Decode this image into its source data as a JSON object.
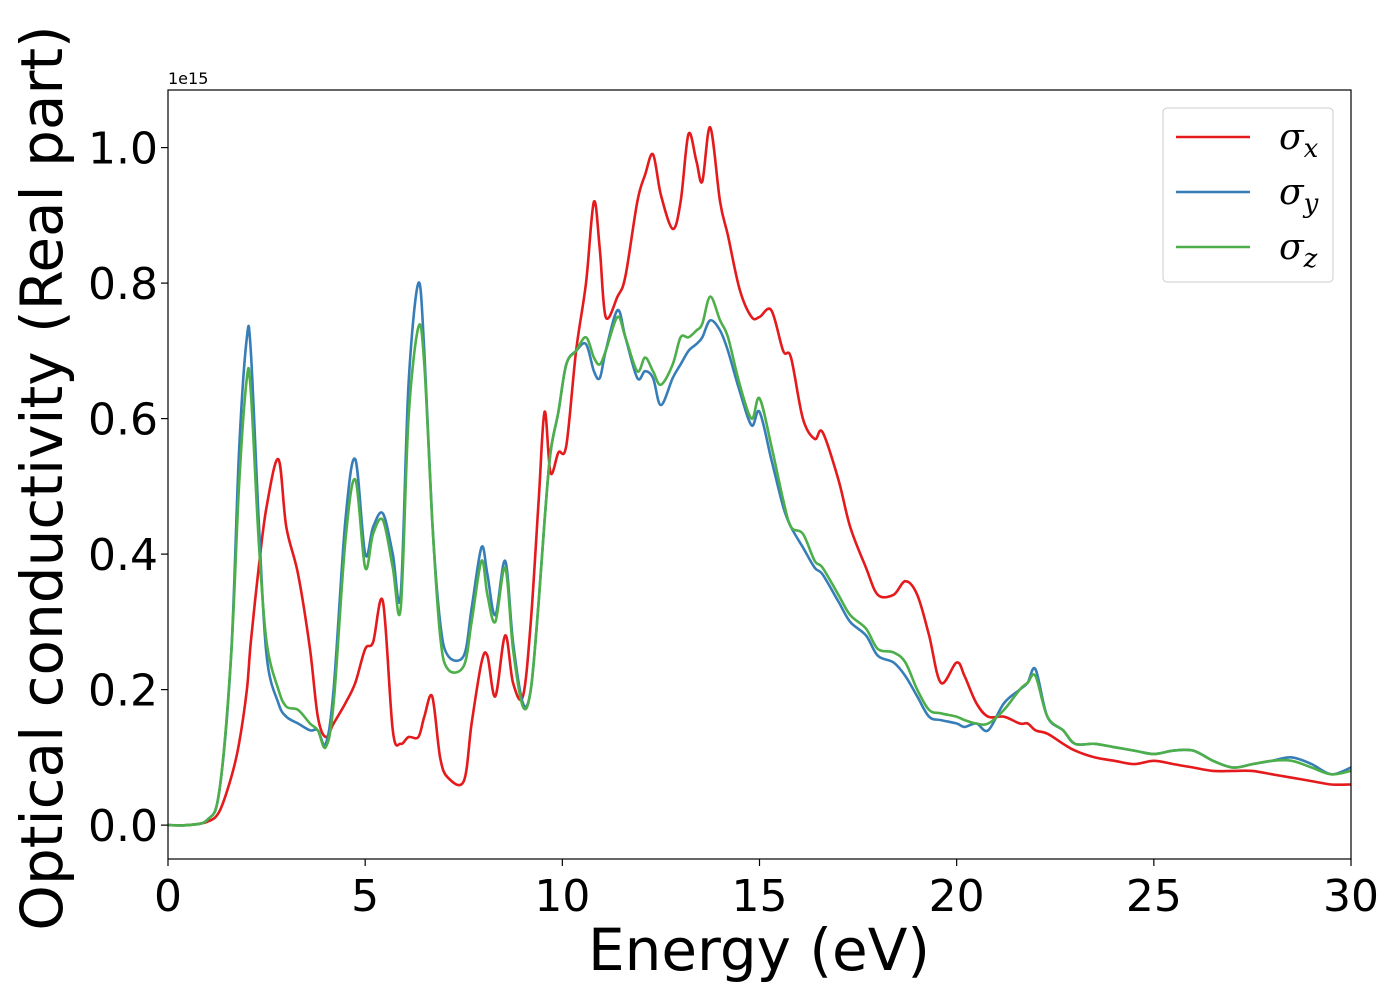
{
  "chart_data": {
    "type": "line",
    "xlabel": "Energy (eV)",
    "ylabel": "Optical conductivity (Real part)",
    "y_offset_text": "1e15",
    "xlim": [
      0,
      30
    ],
    "ylim": [
      -0.05,
      1.085
    ],
    "xticks": [
      0,
      5,
      10,
      15,
      20,
      25,
      30
    ],
    "xtick_labels": [
      "0",
      "5",
      "10",
      "15",
      "20",
      "25",
      "30"
    ],
    "yticks": [
      0.0,
      0.2,
      0.4,
      0.6,
      0.8,
      1.0
    ],
    "ytick_labels": [
      "0.0",
      "0.2",
      "0.4",
      "0.6",
      "0.8",
      "1.0"
    ],
    "grid": false,
    "legend": {
      "position": "top-right"
    },
    "x": [
      0,
      0.5,
      1.0,
      1.3,
      1.6,
      1.8,
      2.0,
      2.1,
      2.3,
      2.5,
      2.8,
      3.0,
      3.3,
      3.6,
      3.8,
      4.0,
      4.2,
      4.5,
      4.75,
      5.0,
      5.2,
      5.45,
      5.7,
      5.9,
      6.1,
      6.35,
      6.5,
      6.7,
      6.9,
      7.1,
      7.5,
      7.7,
      7.95,
      8.1,
      8.3,
      8.55,
      8.75,
      9.0,
      9.2,
      9.4,
      9.55,
      9.7,
      9.9,
      10.1,
      10.35,
      10.6,
      10.8,
      10.95,
      11.1,
      11.4,
      11.6,
      11.9,
      12.1,
      12.3,
      12.5,
      12.8,
      13.0,
      13.2,
      13.4,
      13.55,
      13.75,
      14.0,
      14.2,
      14.5,
      14.8,
      15.0,
      15.3,
      15.6,
      15.8,
      16.1,
      16.4,
      16.6,
      17.0,
      17.3,
      17.7,
      18.0,
      18.4,
      18.7,
      19.0,
      19.3,
      19.6,
      20.0,
      20.2,
      20.5,
      20.8,
      21.2,
      21.6,
      21.8,
      22.0,
      22.3,
      22.7,
      23.0,
      23.5,
      24.0,
      24.5,
      25.0,
      25.5,
      26.0,
      26.5,
      27.0,
      27.5,
      28.0,
      28.5,
      29.0,
      29.5,
      30.0
    ],
    "series": [
      {
        "name": "σ",
        "name_sub": "x",
        "color": "#e41a1c",
        "values": [
          0.0,
          0.0,
          0.005,
          0.02,
          0.07,
          0.12,
          0.2,
          0.27,
          0.38,
          0.47,
          0.54,
          0.44,
          0.37,
          0.26,
          0.16,
          0.13,
          0.15,
          0.18,
          0.21,
          0.26,
          0.27,
          0.33,
          0.14,
          0.12,
          0.13,
          0.13,
          0.16,
          0.19,
          0.1,
          0.07,
          0.065,
          0.15,
          0.24,
          0.25,
          0.19,
          0.28,
          0.21,
          0.19,
          0.3,
          0.48,
          0.61,
          0.52,
          0.55,
          0.56,
          0.7,
          0.8,
          0.92,
          0.85,
          0.75,
          0.78,
          0.81,
          0.92,
          0.96,
          0.99,
          0.93,
          0.88,
          0.92,
          1.02,
          0.98,
          0.95,
          1.03,
          0.92,
          0.87,
          0.79,
          0.75,
          0.75,
          0.76,
          0.7,
          0.69,
          0.6,
          0.57,
          0.58,
          0.51,
          0.44,
          0.38,
          0.34,
          0.34,
          0.36,
          0.34,
          0.28,
          0.21,
          0.24,
          0.22,
          0.18,
          0.16,
          0.16,
          0.15,
          0.15,
          0.14,
          0.135,
          0.12,
          0.11,
          0.1,
          0.095,
          0.09,
          0.095,
          0.09,
          0.085,
          0.08,
          0.08,
          0.08,
          0.075,
          0.07,
          0.065,
          0.06,
          0.06
        ]
      },
      {
        "name": "σ",
        "name_sub": "y",
        "color": "#377eb8",
        "values": [
          0.0,
          0.0,
          0.008,
          0.05,
          0.25,
          0.55,
          0.72,
          0.7,
          0.45,
          0.25,
          0.18,
          0.16,
          0.15,
          0.14,
          0.14,
          0.12,
          0.2,
          0.45,
          0.54,
          0.4,
          0.44,
          0.46,
          0.4,
          0.34,
          0.65,
          0.8,
          0.7,
          0.45,
          0.3,
          0.25,
          0.25,
          0.32,
          0.41,
          0.37,
          0.31,
          0.39,
          0.27,
          0.18,
          0.2,
          0.33,
          0.45,
          0.55,
          0.61,
          0.68,
          0.7,
          0.71,
          0.67,
          0.66,
          0.7,
          0.76,
          0.72,
          0.66,
          0.67,
          0.66,
          0.62,
          0.66,
          0.68,
          0.7,
          0.71,
          0.72,
          0.745,
          0.73,
          0.7,
          0.64,
          0.59,
          0.61,
          0.54,
          0.47,
          0.44,
          0.41,
          0.38,
          0.37,
          0.33,
          0.3,
          0.28,
          0.25,
          0.24,
          0.22,
          0.19,
          0.16,
          0.155,
          0.15,
          0.145,
          0.15,
          0.14,
          0.18,
          0.2,
          0.21,
          0.23,
          0.16,
          0.14,
          0.12,
          0.12,
          0.115,
          0.11,
          0.105,
          0.11,
          0.11,
          0.095,
          0.085,
          0.09,
          0.095,
          0.1,
          0.09,
          0.075,
          0.085
        ]
      },
      {
        "name": "σ",
        "name_sub": "z",
        "color": "#4daf4a",
        "values": [
          0.0,
          0.0,
          0.008,
          0.05,
          0.25,
          0.5,
          0.66,
          0.64,
          0.42,
          0.27,
          0.2,
          0.175,
          0.17,
          0.15,
          0.14,
          0.115,
          0.18,
          0.42,
          0.51,
          0.38,
          0.43,
          0.45,
          0.38,
          0.32,
          0.6,
          0.735,
          0.68,
          0.45,
          0.28,
          0.23,
          0.235,
          0.3,
          0.39,
          0.34,
          0.3,
          0.38,
          0.26,
          0.175,
          0.2,
          0.33,
          0.45,
          0.55,
          0.61,
          0.68,
          0.7,
          0.72,
          0.69,
          0.68,
          0.7,
          0.75,
          0.72,
          0.67,
          0.69,
          0.67,
          0.65,
          0.68,
          0.72,
          0.72,
          0.73,
          0.74,
          0.78,
          0.745,
          0.72,
          0.65,
          0.6,
          0.63,
          0.56,
          0.48,
          0.44,
          0.43,
          0.39,
          0.38,
          0.34,
          0.31,
          0.29,
          0.26,
          0.255,
          0.24,
          0.2,
          0.17,
          0.165,
          0.16,
          0.155,
          0.15,
          0.15,
          0.17,
          0.2,
          0.21,
          0.22,
          0.16,
          0.14,
          0.12,
          0.12,
          0.115,
          0.11,
          0.105,
          0.11,
          0.11,
          0.095,
          0.085,
          0.09,
          0.095,
          0.095,
          0.085,
          0.075,
          0.08
        ]
      }
    ]
  }
}
